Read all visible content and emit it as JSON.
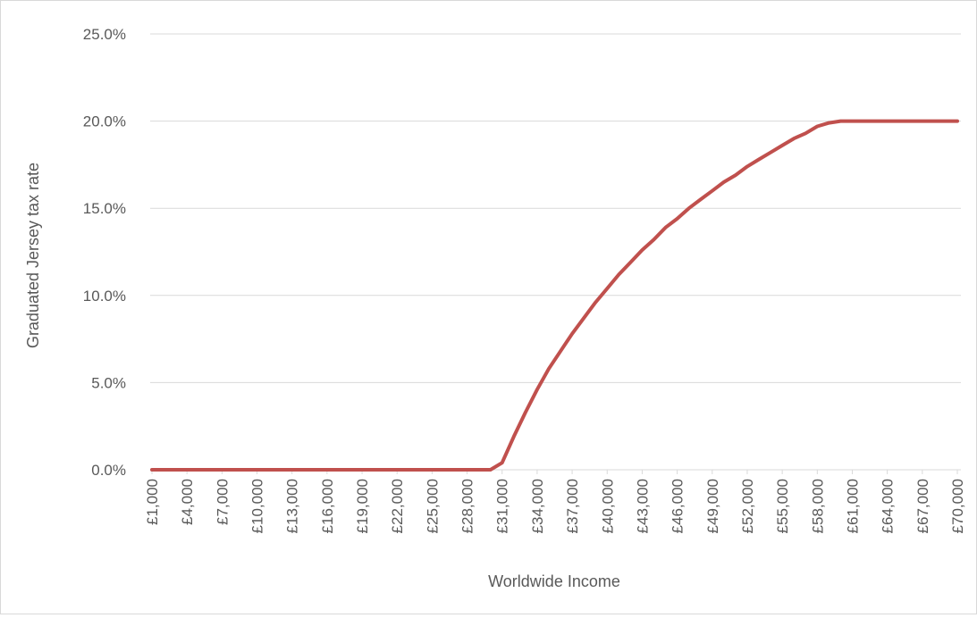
{
  "chart_data": {
    "type": "line",
    "title": "",
    "xlabel": "Worldwide Income",
    "ylabel": "Graduated Jersey tax rate",
    "ylim": [
      0,
      25
    ],
    "y_ticks": [
      0,
      5,
      10,
      15,
      20,
      25
    ],
    "y_tick_labels": [
      "0.0%",
      "5.0%",
      "10.0%",
      "15.0%",
      "20.0%",
      "25.0%"
    ],
    "x_min": 1000,
    "x_max": 70000,
    "x_tick_labels": [
      "£1,000",
      "£4,000",
      "£7,000",
      "£10,000",
      "£13,000",
      "£16,000",
      "£19,000",
      "£22,000",
      "£25,000",
      "£28,000",
      "£31,000",
      "£34,000",
      "£37,000",
      "£40,000",
      "£43,000",
      "£46,000",
      "£49,000",
      "£52,000",
      "£55,000",
      "£58,000",
      "£61,000",
      "£64,000",
      "£67,000",
      "£70,000"
    ],
    "grid": true,
    "line_color": "#c0504d",
    "series": [
      {
        "points": [
          [
            1000,
            0
          ],
          [
            30000,
            0
          ],
          [
            31000,
            0.4
          ],
          [
            32000,
            1.9
          ],
          [
            33000,
            3.3
          ],
          [
            34000,
            4.6
          ],
          [
            35000,
            5.8
          ],
          [
            36000,
            6.8
          ],
          [
            37000,
            7.8
          ],
          [
            38000,
            8.7
          ],
          [
            39000,
            9.6
          ],
          [
            40000,
            10.4
          ],
          [
            41000,
            11.2
          ],
          [
            42000,
            11.9
          ],
          [
            43000,
            12.6
          ],
          [
            44000,
            13.2
          ],
          [
            45000,
            13.9
          ],
          [
            46000,
            14.4
          ],
          [
            47000,
            15.0
          ],
          [
            48000,
            15.5
          ],
          [
            49000,
            16.0
          ],
          [
            50000,
            16.5
          ],
          [
            51000,
            16.9
          ],
          [
            52000,
            17.4
          ],
          [
            53000,
            17.8
          ],
          [
            54000,
            18.2
          ],
          [
            55000,
            18.6
          ],
          [
            56000,
            19.0
          ],
          [
            57000,
            19.3
          ],
          [
            58000,
            19.7
          ],
          [
            59000,
            19.9
          ],
          [
            60000,
            20.0
          ],
          [
            70000,
            20.0
          ]
        ]
      }
    ]
  }
}
